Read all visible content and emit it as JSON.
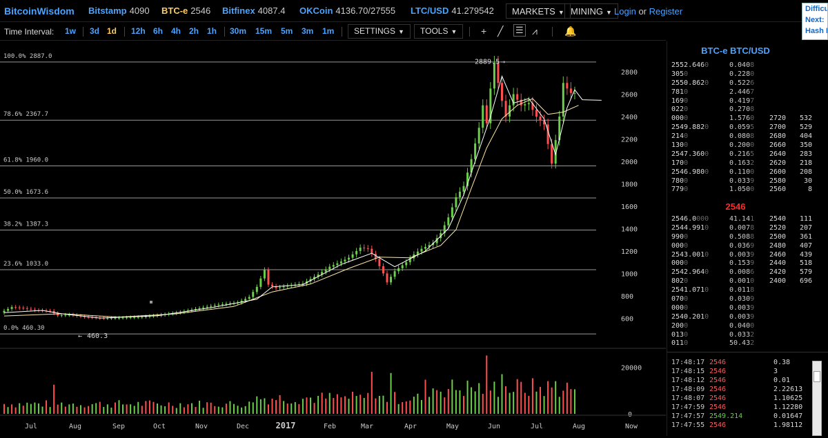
{
  "header": {
    "brand": "BitcoinWisdom",
    "tickers": [
      {
        "name": "Bitstamp",
        "value": "4090",
        "hot": false
      },
      {
        "name": "BTC-e",
        "value": "2546",
        "hot": true
      },
      {
        "name": "Bitfinex",
        "value": "4087.4",
        "hot": false
      },
      {
        "name": "OKCoin",
        "value": "4136.70/27555",
        "hot": false
      },
      {
        "name": "LTC/USD",
        "value": "41.279542",
        "hot": false
      }
    ],
    "markets": "MARKETS",
    "mining": "MINING",
    "login": "Login",
    "or": "or",
    "register": "Register",
    "diff": [
      "Difficu",
      "Next:",
      "Hash I"
    ]
  },
  "toolbar": {
    "label": "Time Interval:",
    "intervals": [
      {
        "label": "1w",
        "active": false
      },
      {
        "label": "3d",
        "active": false
      },
      {
        "label": "1d",
        "active": true
      },
      {
        "label": "12h",
        "active": false
      },
      {
        "label": "6h",
        "active": false
      },
      {
        "label": "4h",
        "active": false
      },
      {
        "label": "2h",
        "active": false
      },
      {
        "label": "1h",
        "active": false
      },
      {
        "label": "30m",
        "active": false
      },
      {
        "label": "15m",
        "active": false
      },
      {
        "label": "5m",
        "active": false
      },
      {
        "label": "3m",
        "active": false
      },
      {
        "label": "1m",
        "active": false
      }
    ],
    "settings": "SETTINGS",
    "tools": "TOOLS",
    "icons": [
      "crosshair-icon",
      "line-tool-icon",
      "fib-tool-icon",
      "fan-tool-icon",
      "bell-icon"
    ]
  },
  "chart_data": {
    "type": "candlestick",
    "x_ticks": [
      "Jul",
      "Aug",
      "Sep",
      "Oct",
      "Nov",
      "Dec",
      "2017",
      "Feb",
      "Mar",
      "Apr",
      "May",
      "Jun",
      "Jul",
      "Aug",
      "Now"
    ],
    "y_ticks": [
      600,
      800,
      1000,
      1200,
      1400,
      1600,
      1800,
      2000,
      2200,
      2400,
      2600,
      2800
    ],
    "volume_ticks": [
      0,
      20000
    ],
    "fib_levels": [
      {
        "label": "100.0% 2887.0",
        "value": 2887.0
      },
      {
        "label": "78.6% 2367.7",
        "value": 2367.7
      },
      {
        "label": "61.8% 1960.0",
        "value": 1960.0
      },
      {
        "label": "50.0% 1673.6",
        "value": 1673.6
      },
      {
        "label": "38.2% 1387.3",
        "value": 1387.3
      },
      {
        "label": "23.6% 1033.0",
        "value": 1033.0
      },
      {
        "label": "0.0% 460.30",
        "value": 460.3
      }
    ],
    "high_label": "2889.5",
    "low_label": "460.3",
    "ylim": [
      430,
      2960
    ],
    "price_path": [
      [
        0,
        650
      ],
      [
        3,
        700
      ],
      [
        6,
        690
      ],
      [
        9,
        672
      ],
      [
        13,
        665
      ],
      [
        15,
        625
      ],
      [
        18,
        632
      ],
      [
        22,
        612
      ],
      [
        27,
        600
      ],
      [
        32,
        605
      ],
      [
        37,
        612
      ],
      [
        42,
        630
      ],
      [
        47,
        655
      ],
      [
        52,
        690
      ],
      [
        57,
        722
      ],
      [
        62,
        740
      ],
      [
        65,
        790
      ],
      [
        67,
        880
      ],
      [
        69,
        1030
      ],
      [
        70,
        900
      ],
      [
        72,
        870
      ],
      [
        75,
        890
      ],
      [
        79,
        910
      ],
      [
        83,
        990
      ],
      [
        86,
        1060
      ],
      [
        88,
        1090
      ],
      [
        91,
        1140
      ],
      [
        94,
        1230
      ],
      [
        96,
        1220
      ],
      [
        98,
        1130
      ],
      [
        100,
        1000
      ],
      [
        101,
        920
      ],
      [
        103,
        1020
      ],
      [
        106,
        1100
      ],
      [
        108,
        1170
      ],
      [
        110,
        1220
      ],
      [
        113,
        1270
      ],
      [
        115,
        1360
      ],
      [
        117,
        1500
      ],
      [
        119,
        1680
      ],
      [
        121,
        1780
      ],
      [
        123,
        2020
      ],
      [
        125,
        2300
      ],
      [
        126,
        2500
      ],
      [
        127,
        2340
      ],
      [
        128,
        2650
      ],
      [
        129,
        2880
      ],
      [
        130,
        2700
      ],
      [
        131,
        2540
      ],
      [
        132,
        2400
      ],
      [
        134,
        2600
      ],
      [
        136,
        2500
      ],
      [
        138,
        2520
      ],
      [
        140,
        2400
      ],
      [
        142,
        2330
      ],
      [
        144,
        1980
      ],
      [
        146,
        2400
      ],
      [
        147,
        2700
      ],
      [
        148,
        2650
      ],
      [
        149,
        2610
      ]
    ],
    "ma_long": [
      [
        0,
        620
      ],
      [
        15,
        640
      ],
      [
        30,
        610
      ],
      [
        45,
        640
      ],
      [
        60,
        705
      ],
      [
        70,
        835
      ],
      [
        80,
        905
      ],
      [
        90,
        1045
      ],
      [
        98,
        1145
      ],
      [
        106,
        1140
      ],
      [
        114,
        1250
      ],
      [
        118,
        1390
      ],
      [
        122,
        1760
      ],
      [
        126,
        2120
      ],
      [
        130,
        2380
      ],
      [
        134,
        2500
      ],
      [
        138,
        2560
      ],
      [
        142,
        2420
      ],
      [
        146,
        2440
      ],
      [
        150,
        2500
      ]
    ],
    "ma_short": [
      [
        0,
        650
      ],
      [
        10,
        670
      ],
      [
        15,
        640
      ],
      [
        25,
        602
      ],
      [
        40,
        622
      ],
      [
        55,
        700
      ],
      [
        66,
        770
      ],
      [
        70,
        880
      ],
      [
        78,
        900
      ],
      [
        88,
        1080
      ],
      [
        96,
        1180
      ],
      [
        102,
        1060
      ],
      [
        110,
        1200
      ],
      [
        116,
        1400
      ],
      [
        120,
        1700
      ],
      [
        124,
        2100
      ],
      [
        127,
        2400
      ],
      [
        130,
        2760
      ],
      [
        133,
        2520
      ],
      [
        137,
        2560
      ],
      [
        141,
        2380
      ],
      [
        144,
        2060
      ],
      [
        147,
        2480
      ],
      [
        149,
        2640
      ],
      [
        151,
        2550
      ],
      [
        156,
        2545
      ]
    ],
    "spikes": [
      [
        13,
        -1,
        12500
      ],
      [
        96,
        -1,
        18000
      ],
      [
        101,
        1,
        17500
      ],
      [
        126,
        -1,
        25000
      ],
      [
        130,
        1,
        17000
      ],
      [
        144,
        1,
        14000
      ]
    ]
  },
  "orderbook": {
    "title": "BTC-e BTC/USD",
    "asks": [
      {
        "price": "2552.646",
        "dim": "0",
        "amount": "0.040",
        "adim": "8",
        "dprice": "",
        "dsum": ""
      },
      {
        "price": "305",
        "dim": "0",
        "amount": "0.228",
        "adim": "0",
        "dprice": "",
        "dsum": ""
      },
      {
        "price": "2550.862",
        "dim": "0",
        "amount": "0.522",
        "adim": "6",
        "dprice": "",
        "dsum": ""
      },
      {
        "price": "781",
        "dim": "0",
        "amount": "2.446",
        "adim": "7",
        "dprice": "",
        "dsum": ""
      },
      {
        "price": "169",
        "dim": "0",
        "amount": "0.419",
        "adim": "7",
        "dprice": "",
        "dsum": ""
      },
      {
        "price": "022",
        "dim": "0",
        "amount": "0.270",
        "adim": "8",
        "dprice": "",
        "dsum": ""
      },
      {
        "price": "000",
        "dim": "0",
        "amount": "1.576",
        "adim": "0",
        "dprice": "2720",
        "dsum": "532"
      },
      {
        "price": "2549.882",
        "dim": "0",
        "amount": "0.059",
        "adim": "5",
        "dprice": "2700",
        "dsum": "529"
      },
      {
        "price": "214",
        "dim": "0",
        "amount": "0.080",
        "adim": "8",
        "dprice": "2680",
        "dsum": "404"
      },
      {
        "price": "130",
        "dim": "0",
        "amount": "0.200",
        "adim": "0",
        "dprice": "2660",
        "dsum": "350"
      },
      {
        "price": "2547.360",
        "dim": "0",
        "amount": "0.216",
        "adim": "5",
        "dprice": "2640",
        "dsum": "283"
      },
      {
        "price": "170",
        "dim": "0",
        "amount": "0.163",
        "adim": "2",
        "dprice": "2620",
        "dsum": "218"
      },
      {
        "price": "2546.980",
        "dim": "0",
        "amount": "0.110",
        "adim": "0",
        "dprice": "2600",
        "dsum": "208"
      },
      {
        "price": "780",
        "dim": "0",
        "amount": "0.033",
        "adim": "9",
        "dprice": "2580",
        "dsum": "30"
      },
      {
        "price": "779",
        "dim": "0",
        "amount": "1.050",
        "adim": "0",
        "dprice": "2560",
        "dsum": "8"
      }
    ],
    "last": "2546",
    "bids": [
      {
        "price": "2546.0",
        "dim": "000",
        "amount": "41.14",
        "adim": "1",
        "dprice": "2540",
        "dsum": "111"
      },
      {
        "price": "2544.991",
        "dim": "0",
        "amount": "0.007",
        "adim": "8",
        "dprice": "2520",
        "dsum": "207"
      },
      {
        "price": "990",
        "dim": "0",
        "amount": "0.508",
        "adim": "8",
        "dprice": "2500",
        "dsum": "361"
      },
      {
        "price": "000",
        "dim": "0",
        "amount": "0.036",
        "adim": "9",
        "dprice": "2480",
        "dsum": "407"
      },
      {
        "price": "2543.001",
        "dim": "0",
        "amount": "0.003",
        "adim": "9",
        "dprice": "2460",
        "dsum": "439"
      },
      {
        "price": "000",
        "dim": "0",
        "amount": "0.153",
        "adim": "9",
        "dprice": "2440",
        "dsum": "518"
      },
      {
        "price": "2542.964",
        "dim": "0",
        "amount": "0.008",
        "adim": "6",
        "dprice": "2420",
        "dsum": "579"
      },
      {
        "price": "802",
        "dim": "0",
        "amount": "0.001",
        "adim": "0",
        "dprice": "2400",
        "dsum": "696"
      },
      {
        "price": "2541.071",
        "dim": "0",
        "amount": "0.011",
        "adim": "8",
        "dprice": "",
        "dsum": ""
      },
      {
        "price": "070",
        "dim": "0",
        "amount": "0.030",
        "adim": "9",
        "dprice": "",
        "dsum": ""
      },
      {
        "price": "000",
        "dim": "0",
        "amount": "0.003",
        "adim": "9",
        "dprice": "",
        "dsum": ""
      },
      {
        "price": "2540.201",
        "dim": "0",
        "amount": "0.003",
        "adim": "9",
        "dprice": "",
        "dsum": ""
      },
      {
        "price": "200",
        "dim": "0",
        "amount": "0.040",
        "adim": "0",
        "dprice": "",
        "dsum": ""
      },
      {
        "price": "013",
        "dim": "0",
        "amount": "0.033",
        "adim": "2",
        "dprice": "",
        "dsum": ""
      },
      {
        "price": "011",
        "dim": "0",
        "amount": "50.43",
        "adim": "2",
        "dprice": "",
        "dsum": ""
      }
    ]
  },
  "trades": [
    {
      "time": "17:48:17",
      "price": "2546",
      "amount": "0.38",
      "up": false
    },
    {
      "time": "17:48:15",
      "price": "2546",
      "amount": "3",
      "up": false
    },
    {
      "time": "17:48:12",
      "price": "2546",
      "amount": "0.01",
      "up": false
    },
    {
      "time": "17:48:09",
      "price": "2546",
      "amount": "2.22613",
      "up": false
    },
    {
      "time": "17:48:07",
      "price": "2546",
      "amount": "1.10625",
      "up": false
    },
    {
      "time": "17:47:59",
      "price": "2546",
      "amount": "1.12280",
      "up": false
    },
    {
      "time": "17:47:57",
      "price": "2549.214",
      "amount": "0.01647",
      "up": true
    },
    {
      "time": "17:47:55",
      "price": "2546",
      "amount": "1.98112",
      "up": false
    }
  ],
  "colors": {
    "up": "#6ccf4a",
    "down": "#ff5050",
    "ma_short": "#ffffff",
    "ma_long": "#ffe9a8",
    "accent": "#4aa3ff",
    "active": "#ffcc66",
    "fib": "#999999"
  }
}
